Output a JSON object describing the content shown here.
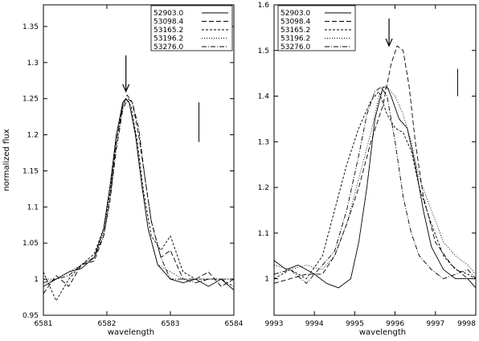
{
  "chart_data": [
    {
      "type": "line",
      "title": "",
      "xlabel": "wavelength",
      "ylabel": "normalized flux",
      "xlim": [
        6581,
        6584
      ],
      "ylim": [
        0.95,
        1.38
      ],
      "x_ticks": [
        "6581",
        "6582",
        "6583",
        "6584"
      ],
      "y_ticks": [
        "0.95",
        "1",
        "1.05",
        "1.1",
        "1.15",
        "1.2",
        "1.25",
        "1.3",
        "1.35"
      ],
      "legend_position": "top-right",
      "annotations": {
        "arrow": {
          "x": 6582.3,
          "y_top": 1.31,
          "y_tip": 1.26
        },
        "bar": {
          "x": 6583.45,
          "y_top": 1.245,
          "y_bottom": 1.19
        }
      },
      "series": [
        {
          "name": "52903.0",
          "style": "solid",
          "x": [
            6581.0,
            6581.2,
            6581.4,
            6581.6,
            6581.8,
            6581.95,
            6582.05,
            6582.15,
            6582.25,
            6582.3,
            6582.35,
            6582.45,
            6582.55,
            6582.65,
            6582.8,
            6583.0,
            6583.2,
            6583.4,
            6583.6,
            6583.8,
            6584.0
          ],
          "y": [
            0.99,
            1.0,
            1.01,
            1.015,
            1.03,
            1.07,
            1.13,
            1.2,
            1.245,
            1.25,
            1.245,
            1.2,
            1.13,
            1.07,
            1.02,
            1.0,
            0.995,
            1.0,
            0.99,
            1.0,
            0.985
          ]
        },
        {
          "name": "53098.4",
          "style": "dashed",
          "x": [
            6581.0,
            6581.2,
            6581.4,
            6581.6,
            6581.8,
            6581.95,
            6582.05,
            6582.15,
            6582.25,
            6582.32,
            6582.4,
            6582.5,
            6582.6,
            6582.7,
            6582.85,
            6583.0,
            6583.2,
            6583.4,
            6583.6,
            6583.8,
            6584.0
          ],
          "y": [
            0.98,
            1.005,
            0.99,
            1.02,
            1.025,
            1.06,
            1.11,
            1.19,
            1.24,
            1.255,
            1.245,
            1.2,
            1.14,
            1.08,
            1.03,
            1.04,
            1.0,
            1.0,
            1.01,
            0.99,
            1.0
          ]
        },
        {
          "name": "53165.2",
          "style": "short-dash",
          "x": [
            6581.0,
            6581.2,
            6581.4,
            6581.6,
            6581.8,
            6581.95,
            6582.05,
            6582.15,
            6582.25,
            6582.3,
            6582.38,
            6582.48,
            6582.58,
            6582.7,
            6582.85,
            6583.0,
            6583.2,
            6583.4,
            6583.6,
            6583.8,
            6584.0
          ],
          "y": [
            1.01,
            0.97,
            1.0,
            1.02,
            1.035,
            1.07,
            1.12,
            1.2,
            1.24,
            1.25,
            1.24,
            1.19,
            1.12,
            1.06,
            1.04,
            1.06,
            1.01,
            1.0,
            1.0,
            1.0,
            0.99
          ]
        },
        {
          "name": "53196.2",
          "style": "dotted",
          "x": [
            6581.0,
            6581.2,
            6581.4,
            6581.6,
            6581.8,
            6581.95,
            6582.05,
            6582.15,
            6582.25,
            6582.3,
            6582.35,
            6582.45,
            6582.55,
            6582.65,
            6582.8,
            6583.0,
            6583.2,
            6583.4,
            6583.6,
            6583.8,
            6584.0
          ],
          "y": [
            1.0,
            1.0,
            1.01,
            1.02,
            1.03,
            1.065,
            1.12,
            1.19,
            1.24,
            1.25,
            1.245,
            1.2,
            1.13,
            1.07,
            1.02,
            1.01,
            1.0,
            1.0,
            1.0,
            1.0,
            1.0
          ]
        },
        {
          "name": "53276.0",
          "style": "dash-dot",
          "x": [
            6581.0,
            6581.2,
            6581.4,
            6581.6,
            6581.8,
            6581.95,
            6582.05,
            6582.15,
            6582.25,
            6582.33,
            6582.4,
            6582.5,
            6582.6,
            6582.7,
            6582.85,
            6583.0,
            6583.2,
            6583.4,
            6583.6,
            6583.8,
            6584.0
          ],
          "y": [
            0.995,
            1.0,
            1.005,
            1.02,
            1.03,
            1.06,
            1.11,
            1.18,
            1.235,
            1.25,
            1.245,
            1.21,
            1.14,
            1.08,
            1.03,
            1.0,
            1.0,
            0.995,
            1.0,
            1.0,
            1.0
          ]
        }
      ]
    },
    {
      "type": "line",
      "title": "",
      "xlabel": "wavelength",
      "ylabel": "",
      "xlim": [
        9993,
        9998
      ],
      "ylim": [
        0.92,
        1.6
      ],
      "x_ticks": [
        "9993",
        "9994",
        "9995",
        "9996",
        "9997",
        "9998"
      ],
      "y_ticks": [
        "1",
        "1.1",
        "1.2",
        "1.3",
        "1.4",
        "1.5",
        "1.6"
      ],
      "legend_position": "top-left",
      "annotations": {
        "arrow": {
          "x": 9995.85,
          "y_top": 1.57,
          "y_tip": 1.51
        },
        "bar": {
          "x": 9997.55,
          "y_top": 1.46,
          "y_bottom": 1.4
        }
      },
      "series": [
        {
          "name": "52903.0",
          "style": "solid",
          "x": [
            9993.0,
            9993.3,
            9993.6,
            9994.0,
            9994.3,
            9994.6,
            9994.9,
            9995.1,
            9995.3,
            9995.5,
            9995.7,
            9995.8,
            9995.9,
            9996.1,
            9996.3,
            9996.5,
            9996.7,
            9996.9,
            9997.2,
            9997.5,
            9997.8,
            9998.0
          ],
          "y": [
            1.04,
            1.02,
            1.03,
            1.01,
            0.99,
            0.98,
            1.0,
            1.08,
            1.2,
            1.35,
            1.42,
            1.42,
            1.4,
            1.35,
            1.33,
            1.25,
            1.15,
            1.07,
            1.02,
            1.0,
            1.0,
            0.98
          ]
        },
        {
          "name": "53098.4",
          "style": "dashed",
          "x": [
            9993.0,
            9993.4,
            9993.8,
            9994.2,
            9994.5,
            9994.8,
            9995.1,
            9995.4,
            9995.7,
            9995.9,
            9996.05,
            9996.2,
            9996.35,
            9996.5,
            9996.7,
            9997.0,
            9997.4,
            9997.8,
            9998.0
          ],
          "y": [
            0.99,
            1.0,
            1.01,
            1.01,
            1.05,
            1.12,
            1.2,
            1.3,
            1.38,
            1.47,
            1.51,
            1.5,
            1.42,
            1.3,
            1.18,
            1.08,
            1.03,
            1.0,
            1.0
          ]
        },
        {
          "name": "53165.2",
          "style": "short-dash",
          "x": [
            9993.0,
            9993.4,
            9993.8,
            9994.2,
            9994.5,
            9994.8,
            9995.1,
            9995.4,
            9995.6,
            9995.8,
            9996.0,
            9996.2,
            9996.4,
            9996.6,
            9996.9,
            9997.2,
            9997.5,
            9997.8,
            9998.0
          ],
          "y": [
            1.0,
            1.02,
            1.0,
            1.05,
            1.15,
            1.25,
            1.33,
            1.39,
            1.41,
            1.36,
            1.33,
            1.32,
            1.28,
            1.2,
            1.12,
            1.05,
            1.02,
            1.01,
            1.0
          ]
        },
        {
          "name": "53196.2",
          "style": "dotted",
          "x": [
            9993.0,
            9993.4,
            9993.8,
            9994.2,
            9994.5,
            9994.8,
            9995.1,
            9995.4,
            9995.6,
            9995.8,
            9996.0,
            9996.2,
            9996.4,
            9996.6,
            9996.9,
            9997.2,
            9997.5,
            9997.8,
            9998.0
          ],
          "y": [
            1.03,
            1.02,
            1.03,
            1.02,
            1.05,
            1.12,
            1.22,
            1.32,
            1.4,
            1.42,
            1.4,
            1.36,
            1.3,
            1.22,
            1.15,
            1.08,
            1.05,
            1.03,
            1.01
          ]
        },
        {
          "name": "53276.0",
          "style": "dash-dot",
          "x": [
            9993.0,
            9993.4,
            9993.8,
            9994.2,
            9994.5,
            9994.8,
            9995.1,
            9995.3,
            9995.5,
            9995.65,
            9995.8,
            9996.0,
            9996.2,
            9996.4,
            9996.6,
            9996.9,
            9997.2,
            9997.5,
            9997.8,
            9998.0
          ],
          "y": [
            1.01,
            1.02,
            0.99,
            1.03,
            1.06,
            1.15,
            1.27,
            1.36,
            1.41,
            1.42,
            1.4,
            1.3,
            1.18,
            1.1,
            1.05,
            1.02,
            1.0,
            1.01,
            1.02,
            1.0
          ]
        }
      ]
    }
  ]
}
